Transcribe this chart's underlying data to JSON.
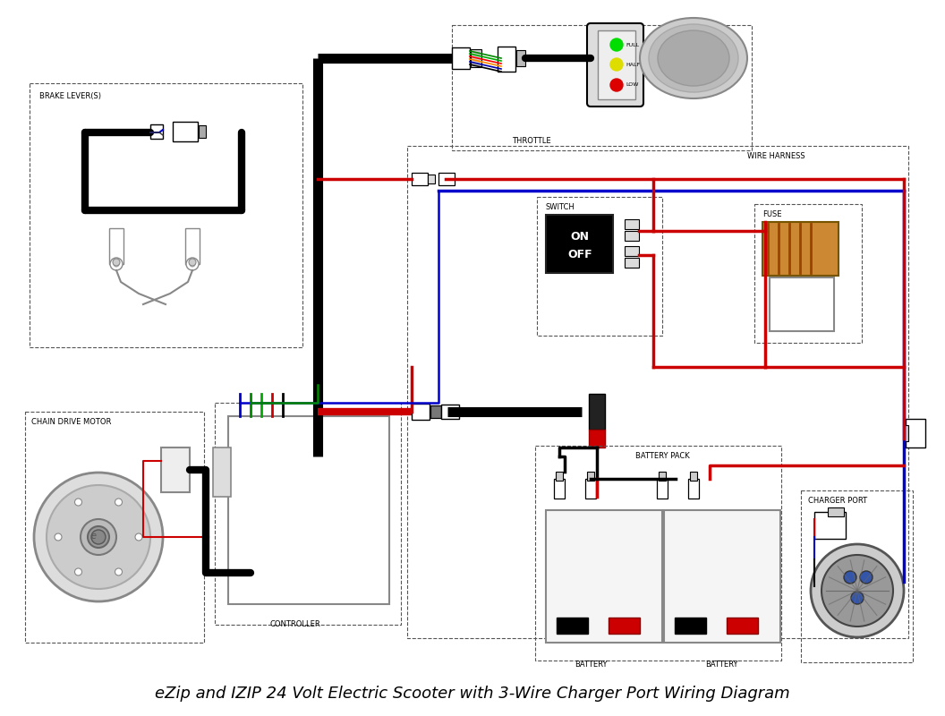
{
  "title": "eZip and IZIP 24 Volt Electric Scooter with 3-Wire Charger Port Wiring Diagram",
  "title_fontsize": 13,
  "background_color": "#ffffff",
  "wire_colors": {
    "black": "#000000",
    "red": "#cc0000",
    "blue": "#0000cc",
    "green": "#008800",
    "white": "#f0f0f0",
    "orange": "#cc8833",
    "gray": "#888888"
  },
  "labels": {
    "brake": "BRAKE LEVER(S)",
    "throttle": "THROTTLE",
    "harness": "WIRE HARNESS",
    "switch": "SWITCH",
    "fuse": "FUSE",
    "motor": "CHAIN DRIVE MOTOR",
    "controller": "CONTROLLER",
    "battery1": "BATTERY",
    "battery2": "BATTERY",
    "battery_pack": "BATTERY PACK",
    "charger": "CHARGER PORT"
  }
}
